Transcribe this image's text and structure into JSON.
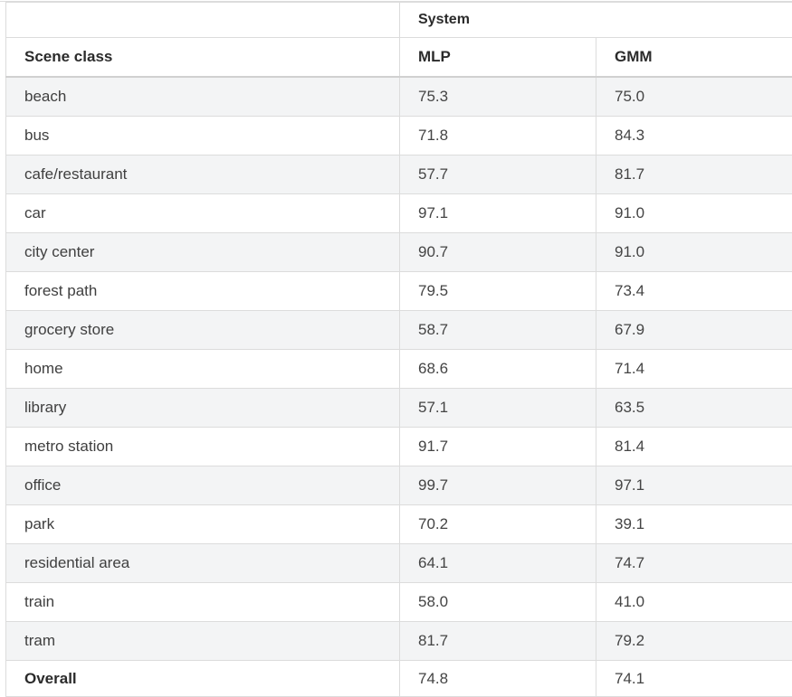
{
  "table": {
    "group_header": "System",
    "columns": [
      "Scene class",
      "MLP",
      "GMM"
    ],
    "rows": [
      {
        "scene": "beach",
        "mlp": "75.3",
        "gmm": "75.0"
      },
      {
        "scene": "bus",
        "mlp": "71.8",
        "gmm": "84.3"
      },
      {
        "scene": "cafe/restaurant",
        "mlp": "57.7",
        "gmm": "81.7"
      },
      {
        "scene": "car",
        "mlp": "97.1",
        "gmm": "91.0"
      },
      {
        "scene": "city center",
        "mlp": "90.7",
        "gmm": "91.0"
      },
      {
        "scene": "forest path",
        "mlp": "79.5",
        "gmm": "73.4"
      },
      {
        "scene": "grocery store",
        "mlp": "58.7",
        "gmm": "67.9"
      },
      {
        "scene": "home",
        "mlp": "68.6",
        "gmm": "71.4"
      },
      {
        "scene": "library",
        "mlp": "57.1",
        "gmm": "63.5"
      },
      {
        "scene": "metro station",
        "mlp": "91.7",
        "gmm": "81.4"
      },
      {
        "scene": "office",
        "mlp": "99.7",
        "gmm": "97.1"
      },
      {
        "scene": "park",
        "mlp": "70.2",
        "gmm": "39.1"
      },
      {
        "scene": "residential area",
        "mlp": "64.1",
        "gmm": "74.7"
      },
      {
        "scene": "train",
        "mlp": "58.0",
        "gmm": "41.0"
      },
      {
        "scene": "tram",
        "mlp": "81.7",
        "gmm": "79.2"
      }
    ],
    "overall": {
      "scene": "Overall",
      "mlp": "74.8",
      "gmm": "74.1"
    }
  }
}
